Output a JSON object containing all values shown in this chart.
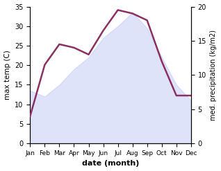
{
  "months": [
    "Jan",
    "Feb",
    "Mar",
    "Apr",
    "May",
    "Jun",
    "Jul",
    "Aug",
    "Sep",
    "Oct",
    "Nov",
    "Dec"
  ],
  "month_positions": [
    0,
    1,
    2,
    3,
    4,
    5,
    6,
    7,
    8,
    9,
    10,
    11
  ],
  "max_temp": [
    13.5,
    12.0,
    15.0,
    19.0,
    22.0,
    27.0,
    30.0,
    33.5,
    29.5,
    22.0,
    15.0,
    11.0
  ],
  "precipitation": [
    4.0,
    11.5,
    14.5,
    14.0,
    13.0,
    16.5,
    19.5,
    19.0,
    18.0,
    12.0,
    7.0,
    7.0
  ],
  "temp_fill_color": "#c5cdf5",
  "precip_line_color": "#8b3060",
  "temp_ylim": [
    0,
    35
  ],
  "precip_ylim": [
    0,
    20
  ],
  "temp_yticks": [
    0,
    5,
    10,
    15,
    20,
    25,
    30,
    35
  ],
  "precip_yticks": [
    0,
    5,
    10,
    15,
    20
  ],
  "ylabel_left": "max temp (C)",
  "ylabel_right": "med. precipitation (kg/m2)",
  "xlabel": "date (month)",
  "bg_color": "#ffffff",
  "fill_alpha": 0.55
}
